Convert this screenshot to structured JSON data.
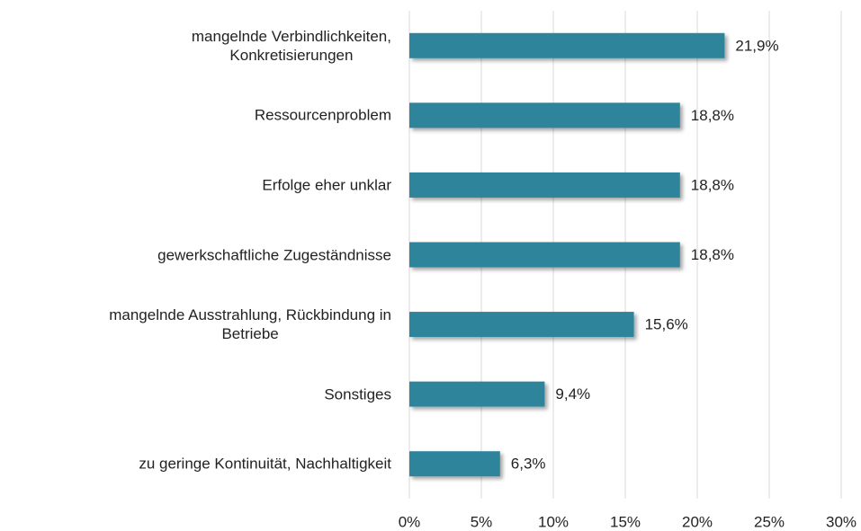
{
  "chart_data": {
    "type": "barh",
    "categories": [
      "mangelnde Verbindlichkeiten,\nKonkretisierungen",
      "Ressourcenproblem",
      "Erfolge eher unklar",
      "gewerkschaftliche Zugeständnisse",
      "mangelnde Ausstrahlung, Rückbindung in\nBetriebe",
      "Sonstiges",
      "zu geringe Kontinuität, Nachhaltigkeit"
    ],
    "values": [
      21.9,
      18.8,
      18.8,
      18.8,
      15.6,
      9.4,
      6.3
    ],
    "value_labels": [
      "21,9%",
      "18,8%",
      "18,8%",
      "18,8%",
      "15,6%",
      "9,4%",
      "6,3%"
    ],
    "color": "#2f849b",
    "xlim": [
      0,
      30
    ],
    "xticks": [
      {
        "value": 0,
        "label": "0%"
      },
      {
        "value": 5,
        "label": "5%"
      },
      {
        "value": 10,
        "label": "10%"
      },
      {
        "value": 15,
        "label": "15%"
      },
      {
        "value": 20,
        "label": "20%"
      },
      {
        "value": 25,
        "label": "25%"
      },
      {
        "value": 30,
        "label": "30%"
      }
    ],
    "grid": true
  }
}
